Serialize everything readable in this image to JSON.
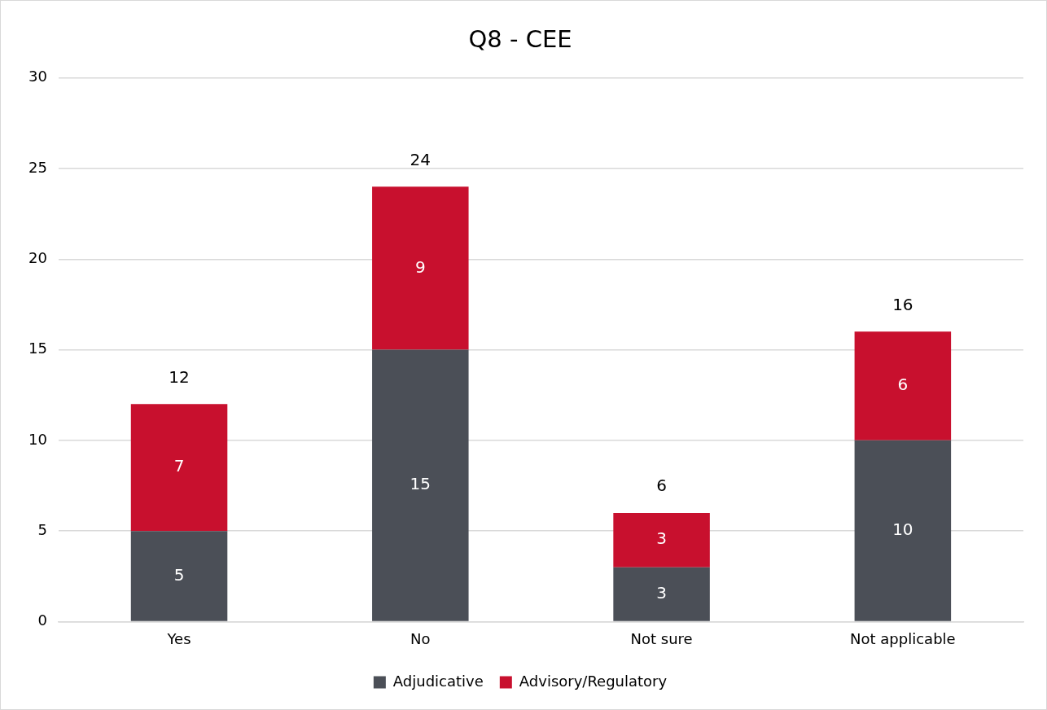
{
  "chart_data": {
    "type": "bar",
    "title": "Q8 - CEE",
    "stacked": true,
    "categories": [
      "Yes",
      "No",
      "Not sure",
      "Not applicable"
    ],
    "series": [
      {
        "name": "Adjudicative",
        "color": "#4b4f57",
        "values": [
          5,
          15,
          3,
          10
        ]
      },
      {
        "name": "Advisory/Regulatory",
        "color": "#c8102e",
        "values": [
          7,
          9,
          3,
          6
        ]
      }
    ],
    "ylim": [
      0,
      30
    ],
    "yticks": [
      0,
      5,
      10,
      15,
      20,
      25,
      30
    ],
    "grid": "y",
    "legend": "bottom",
    "data_labels": true,
    "totals": [
      "12",
      "24",
      "6",
      "16"
    ]
  }
}
